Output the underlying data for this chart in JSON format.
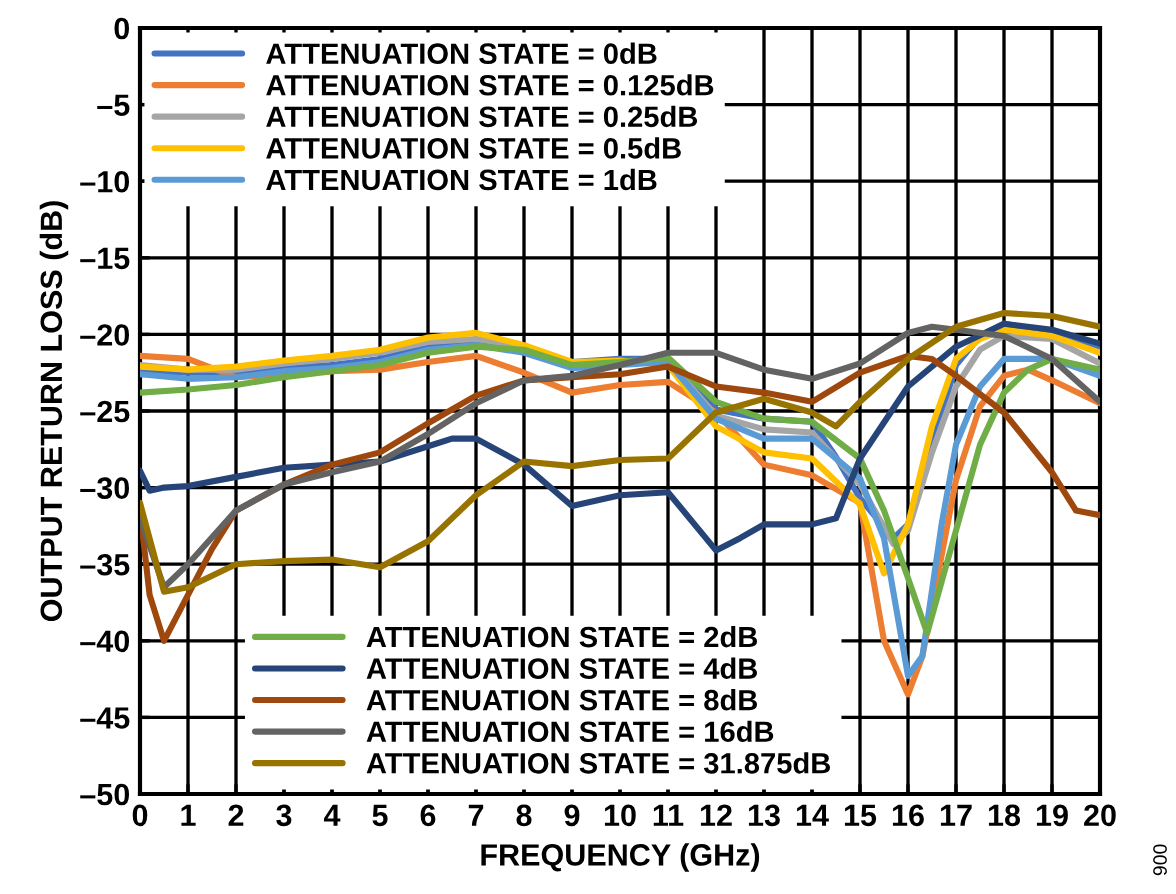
{
  "chart_data": {
    "type": "line",
    "xlabel": "FREQUENCY (GHz)",
    "ylabel": "OUTPUT RETURN LOSS (dB)",
    "xlim": [
      0,
      20
    ],
    "xticks": [
      0,
      1,
      2,
      3,
      4,
      5,
      6,
      7,
      8,
      9,
      10,
      11,
      12,
      13,
      14,
      15,
      16,
      17,
      18,
      19,
      20
    ],
    "ylim": [
      -50,
      0
    ],
    "yticks": [
      0,
      {
        "value": -5,
        "label": "–5"
      },
      {
        "value": -10,
        "label": "–10"
      },
      {
        "value": -15,
        "label": "–15"
      },
      {
        "value": -20,
        "label": "–20"
      },
      {
        "value": -25,
        "label": "–25"
      },
      {
        "value": -30,
        "label": "–30"
      },
      {
        "value": -35,
        "label": "–35"
      },
      {
        "value": -40,
        "label": "–40"
      },
      {
        "value": -45,
        "label": "–45"
      },
      {
        "value": -50,
        "label": "–50"
      }
    ],
    "grid": true,
    "legend": "top left",
    "line_style": "solid",
    "marker": "none",
    "annotations": [
      "006"
    ],
    "series": [
      {
        "name": "ATTENUATION STATE = 0dB",
        "color": "#4472c4",
        "x": [
          0,
          1,
          2,
          3,
          4,
          5,
          6,
          7,
          8,
          9,
          10,
          11,
          12,
          13,
          14,
          14.5,
          15,
          15.7,
          16,
          16.5,
          17,
          17.5,
          18,
          19,
          20
        ],
        "values": [
          -22.4,
          -22.5,
          -22.5,
          -22.2,
          -22,
          -21.6,
          -20.8,
          -20.5,
          -21,
          -21.8,
          -21.6,
          -21.6,
          -24.9,
          -25.5,
          -25.7,
          -28,
          -30.7,
          -33.3,
          -32.4,
          -27.2,
          -22,
          -20.1,
          -19.3,
          -19.9,
          -21
        ]
      },
      {
        "name": "ATTENUATION STATE = 0.125dB",
        "color": "#ed7d31",
        "x": [
          0,
          1,
          2,
          3,
          4,
          5,
          6,
          7,
          8,
          9,
          10,
          11,
          12,
          13,
          14,
          15,
          15.5,
          16,
          16.3,
          17,
          17.5,
          18,
          18.5,
          19,
          20
        ],
        "values": [
          -21.4,
          -21.6,
          -22.8,
          -22.6,
          -22.4,
          -22.3,
          -21.8,
          -21.4,
          -22.5,
          -23.8,
          -23.3,
          -23.1,
          -25.1,
          -28.5,
          -29.2,
          -31,
          -40,
          -43.5,
          -41,
          -29.5,
          -24.7,
          -22.7,
          -22.3,
          -23,
          -24.5
        ]
      },
      {
        "name": "ATTENUATION STATE = 0.25dB",
        "color": "#a5a5a5",
        "x": [
          0,
          1,
          2,
          3,
          4,
          5,
          6,
          7,
          8,
          9,
          10,
          11,
          12,
          13,
          14,
          15,
          15.7,
          16,
          16.5,
          17,
          17.5,
          18,
          19,
          20
        ],
        "values": [
          -22,
          -22.3,
          -22.3,
          -21.9,
          -21.6,
          -21.2,
          -20.5,
          -20.3,
          -20.8,
          -22,
          -21.8,
          -21.7,
          -25.3,
          -26.2,
          -26.4,
          -29.8,
          -33.7,
          -32.8,
          -27.7,
          -23.4,
          -21,
          -20.1,
          -20.3,
          -21.9
        ]
      },
      {
        "name": "ATTENUATION STATE = 0.5dB",
        "color": "#ffc000",
        "x": [
          0,
          1,
          2,
          3,
          4,
          5,
          6,
          7,
          8,
          9,
          10,
          11,
          12,
          13,
          14,
          15,
          15.5,
          16,
          16.5,
          17,
          17.5,
          18,
          19,
          20
        ],
        "values": [
          -22.1,
          -22.3,
          -22.1,
          -21.7,
          -21.4,
          -21,
          -20.2,
          -19.9,
          -20.7,
          -21.8,
          -21.7,
          -22,
          -26,
          -27.7,
          -28.1,
          -31.1,
          -35.6,
          -32.4,
          -26,
          -21.6,
          -20.3,
          -19.7,
          -20.1,
          -21.2
        ]
      },
      {
        "name": "ATTENUATION STATE = 1dB",
        "color": "#5b9bd5",
        "x": [
          0,
          1,
          2,
          3,
          4,
          5,
          6,
          7,
          8,
          9,
          10,
          11,
          12,
          13,
          14,
          15,
          15.5,
          16,
          16.3,
          16.7,
          17,
          17.5,
          18,
          19,
          20
        ],
        "values": [
          -22.6,
          -22.9,
          -22.8,
          -22.4,
          -22.2,
          -21.8,
          -21,
          -20.7,
          -21.2,
          -22.2,
          -22,
          -21.8,
          -25.5,
          -26.8,
          -26.8,
          -29.4,
          -33.3,
          -42.3,
          -41,
          -32.4,
          -27.2,
          -23.4,
          -21.6,
          -21.6,
          -22.7
        ]
      },
      {
        "name": "ATTENUATION STATE = 2dB",
        "color": "#70ad47",
        "x": [
          0,
          1,
          2,
          3,
          4,
          5,
          6,
          7,
          8,
          9,
          10,
          11,
          12,
          13,
          14,
          15,
          15.5,
          16,
          16.4,
          17,
          17.5,
          18,
          18.5,
          19,
          20
        ],
        "values": [
          -23.8,
          -23.6,
          -23.3,
          -22.8,
          -22.4,
          -22,
          -21.2,
          -20.8,
          -21,
          -22,
          -21.8,
          -21.5,
          -24.4,
          -25.5,
          -25.7,
          -28.1,
          -31.5,
          -35.9,
          -39.5,
          -32.8,
          -27.2,
          -23.8,
          -22.3,
          -21.6,
          -22.3
        ]
      },
      {
        "name": "ATTENUATION STATE = 4dB",
        "color": "#264478",
        "x": [
          0,
          0.2,
          0.5,
          1,
          2,
          3,
          4,
          5,
          6,
          6.5,
          7,
          8,
          9,
          10,
          11,
          12,
          12.5,
          13,
          14,
          14.5,
          15,
          16,
          17,
          18,
          19,
          20
        ],
        "values": [
          -28.9,
          -30.2,
          -30,
          -29.9,
          -29.3,
          -28.7,
          -28.5,
          -28.3,
          -27.3,
          -26.8,
          -26.8,
          -28.5,
          -31.2,
          -30.5,
          -30.3,
          -34.1,
          -33.3,
          -32.4,
          -32.4,
          -32,
          -28.1,
          -23.4,
          -20.8,
          -19.3,
          -19.7,
          -20.6
        ]
      },
      {
        "name": "ATTENUATION STATE = 8dB",
        "color": "#9e480e",
        "x": [
          0,
          0.2,
          0.5,
          1,
          1.5,
          2,
          3,
          4,
          5,
          6,
          7,
          8,
          9,
          10,
          11,
          12,
          13,
          14,
          15,
          16,
          16.5,
          17,
          18,
          19,
          19.5,
          20
        ],
        "values": [
          -31.5,
          -37,
          -40,
          -37,
          -34,
          -31.5,
          -29.8,
          -28.5,
          -27.7,
          -25.8,
          -24,
          -23,
          -22.8,
          -22.6,
          -22.1,
          -23.4,
          -23.8,
          -24.4,
          -22.5,
          -21.4,
          -21.6,
          -22.7,
          -25.1,
          -29,
          -31.5,
          -31.8
        ]
      },
      {
        "name": "ATTENUATION STATE = 16dB",
        "color": "#636363",
        "x": [
          0,
          0.5,
          1,
          2,
          3,
          4,
          5,
          6,
          7,
          8,
          9,
          10,
          11,
          12,
          13,
          14,
          15,
          16,
          16.5,
          17,
          18,
          19,
          20
        ],
        "values": [
          -32,
          -36.5,
          -35,
          -31.5,
          -29.8,
          -29,
          -28.3,
          -26.5,
          -24.5,
          -23,
          -22.7,
          -22,
          -21.2,
          -21.2,
          -22.3,
          -22.9,
          -21.9,
          -19.9,
          -19.5,
          -19.7,
          -20.1,
          -21.6,
          -24.4
        ]
      },
      {
        "name": "ATTENUATION STATE = 31.875dB",
        "color": "#997300",
        "x": [
          0,
          0.5,
          1,
          2,
          3,
          4,
          5,
          6,
          7,
          8,
          9,
          10,
          11,
          12,
          13,
          14,
          14.5,
          15,
          16,
          17,
          18,
          19,
          20
        ],
        "values": [
          -31,
          -36.8,
          -36.5,
          -35,
          -34.8,
          -34.7,
          -35.2,
          -33.5,
          -30.5,
          -28.3,
          -28.6,
          -28.2,
          -28.1,
          -25.1,
          -24.2,
          -25.1,
          -26,
          -24.4,
          -21.6,
          -19.5,
          -18.6,
          -18.8,
          -19.5
        ]
      }
    ]
  }
}
